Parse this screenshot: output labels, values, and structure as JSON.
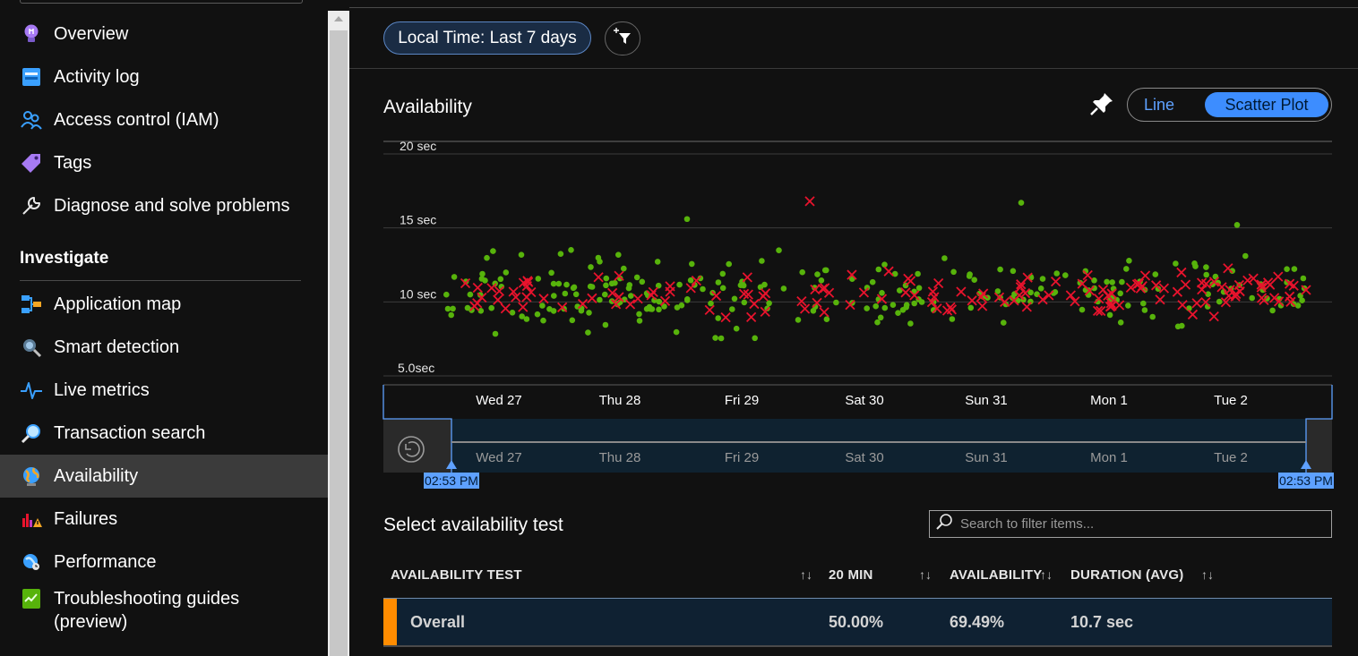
{
  "sidebar": {
    "items": [
      {
        "label": "Overview",
        "icon": "lightbulb-icon"
      },
      {
        "label": "Activity log",
        "icon": "activity-log-icon"
      },
      {
        "label": "Access control (IAM)",
        "icon": "people-icon"
      },
      {
        "label": "Tags",
        "icon": "tag-icon"
      },
      {
        "label": "Diagnose and solve problems",
        "icon": "wrench-icon"
      }
    ],
    "section_investigate": "Investigate",
    "investigate_items": [
      {
        "label": "Application map",
        "icon": "app-map-icon"
      },
      {
        "label": "Smart detection",
        "icon": "smart-detection-icon"
      },
      {
        "label": "Live metrics",
        "icon": "pulse-icon"
      },
      {
        "label": "Transaction search",
        "icon": "magnifier-icon"
      },
      {
        "label": "Availability",
        "icon": "globe-icon",
        "active": true
      },
      {
        "label": "Failures",
        "icon": "failures-icon"
      },
      {
        "label": "Performance",
        "icon": "performance-icon"
      },
      {
        "label": "Troubleshooting guides",
        "label2": "(preview)",
        "icon": "guide-icon"
      }
    ]
  },
  "toolbar": {
    "time_range": "Local Time: Last 7 days",
    "filter_icon": "add-filter-icon"
  },
  "availability": {
    "title": "Availability",
    "pin_icon": "pin-icon",
    "view_toggle": {
      "options": [
        "Line",
        "Scatter Plot"
      ],
      "selected": "Scatter Plot"
    }
  },
  "chart_data": {
    "type": "scatter",
    "title": "Availability",
    "xlabel": "",
    "ylabel": "",
    "y_tick_labels": [
      "20 sec",
      "15 sec",
      "10 sec",
      "5.0sec"
    ],
    "y_ticks": [
      20,
      15,
      10,
      5
    ],
    "ylim": [
      5,
      20
    ],
    "x_tick_labels": [
      "Wed 27",
      "Thu 28",
      "Fri 29",
      "Sat 30",
      "Sun 31",
      "Mon 1",
      "Tue 2"
    ],
    "grid": true,
    "series": [
      {
        "marker": "dot",
        "color": "#57b30b",
        "points": []
      },
      {
        "marker": "x",
        "color": "#e8132d",
        "points": []
      }
    ],
    "note_points": "Points are generated procedurally within 6.2–16.7 sec over the 7-day range"
  },
  "brush": {
    "x_tick_labels": [
      "Wed 27",
      "Thu 28",
      "Fri 29",
      "Sat 30",
      "Sun 31",
      "Mon 1",
      "Tue 2"
    ],
    "start_label": "02:53 PM",
    "end_label": "02:53 PM",
    "reset_icon": "reset-zoom-icon"
  },
  "table": {
    "title": "Select availability test",
    "search_placeholder": "Search to filter items...",
    "headers": [
      "AVAILABILITY TEST",
      "20 MIN",
      "AVAILABILITY",
      "DURATION (AVG)"
    ],
    "rows": [
      {
        "name": "Overall",
        "min20": "50.00%",
        "availability": "69.49%",
        "duration": "10.7 sec",
        "accent": "#ff8c00"
      }
    ]
  }
}
